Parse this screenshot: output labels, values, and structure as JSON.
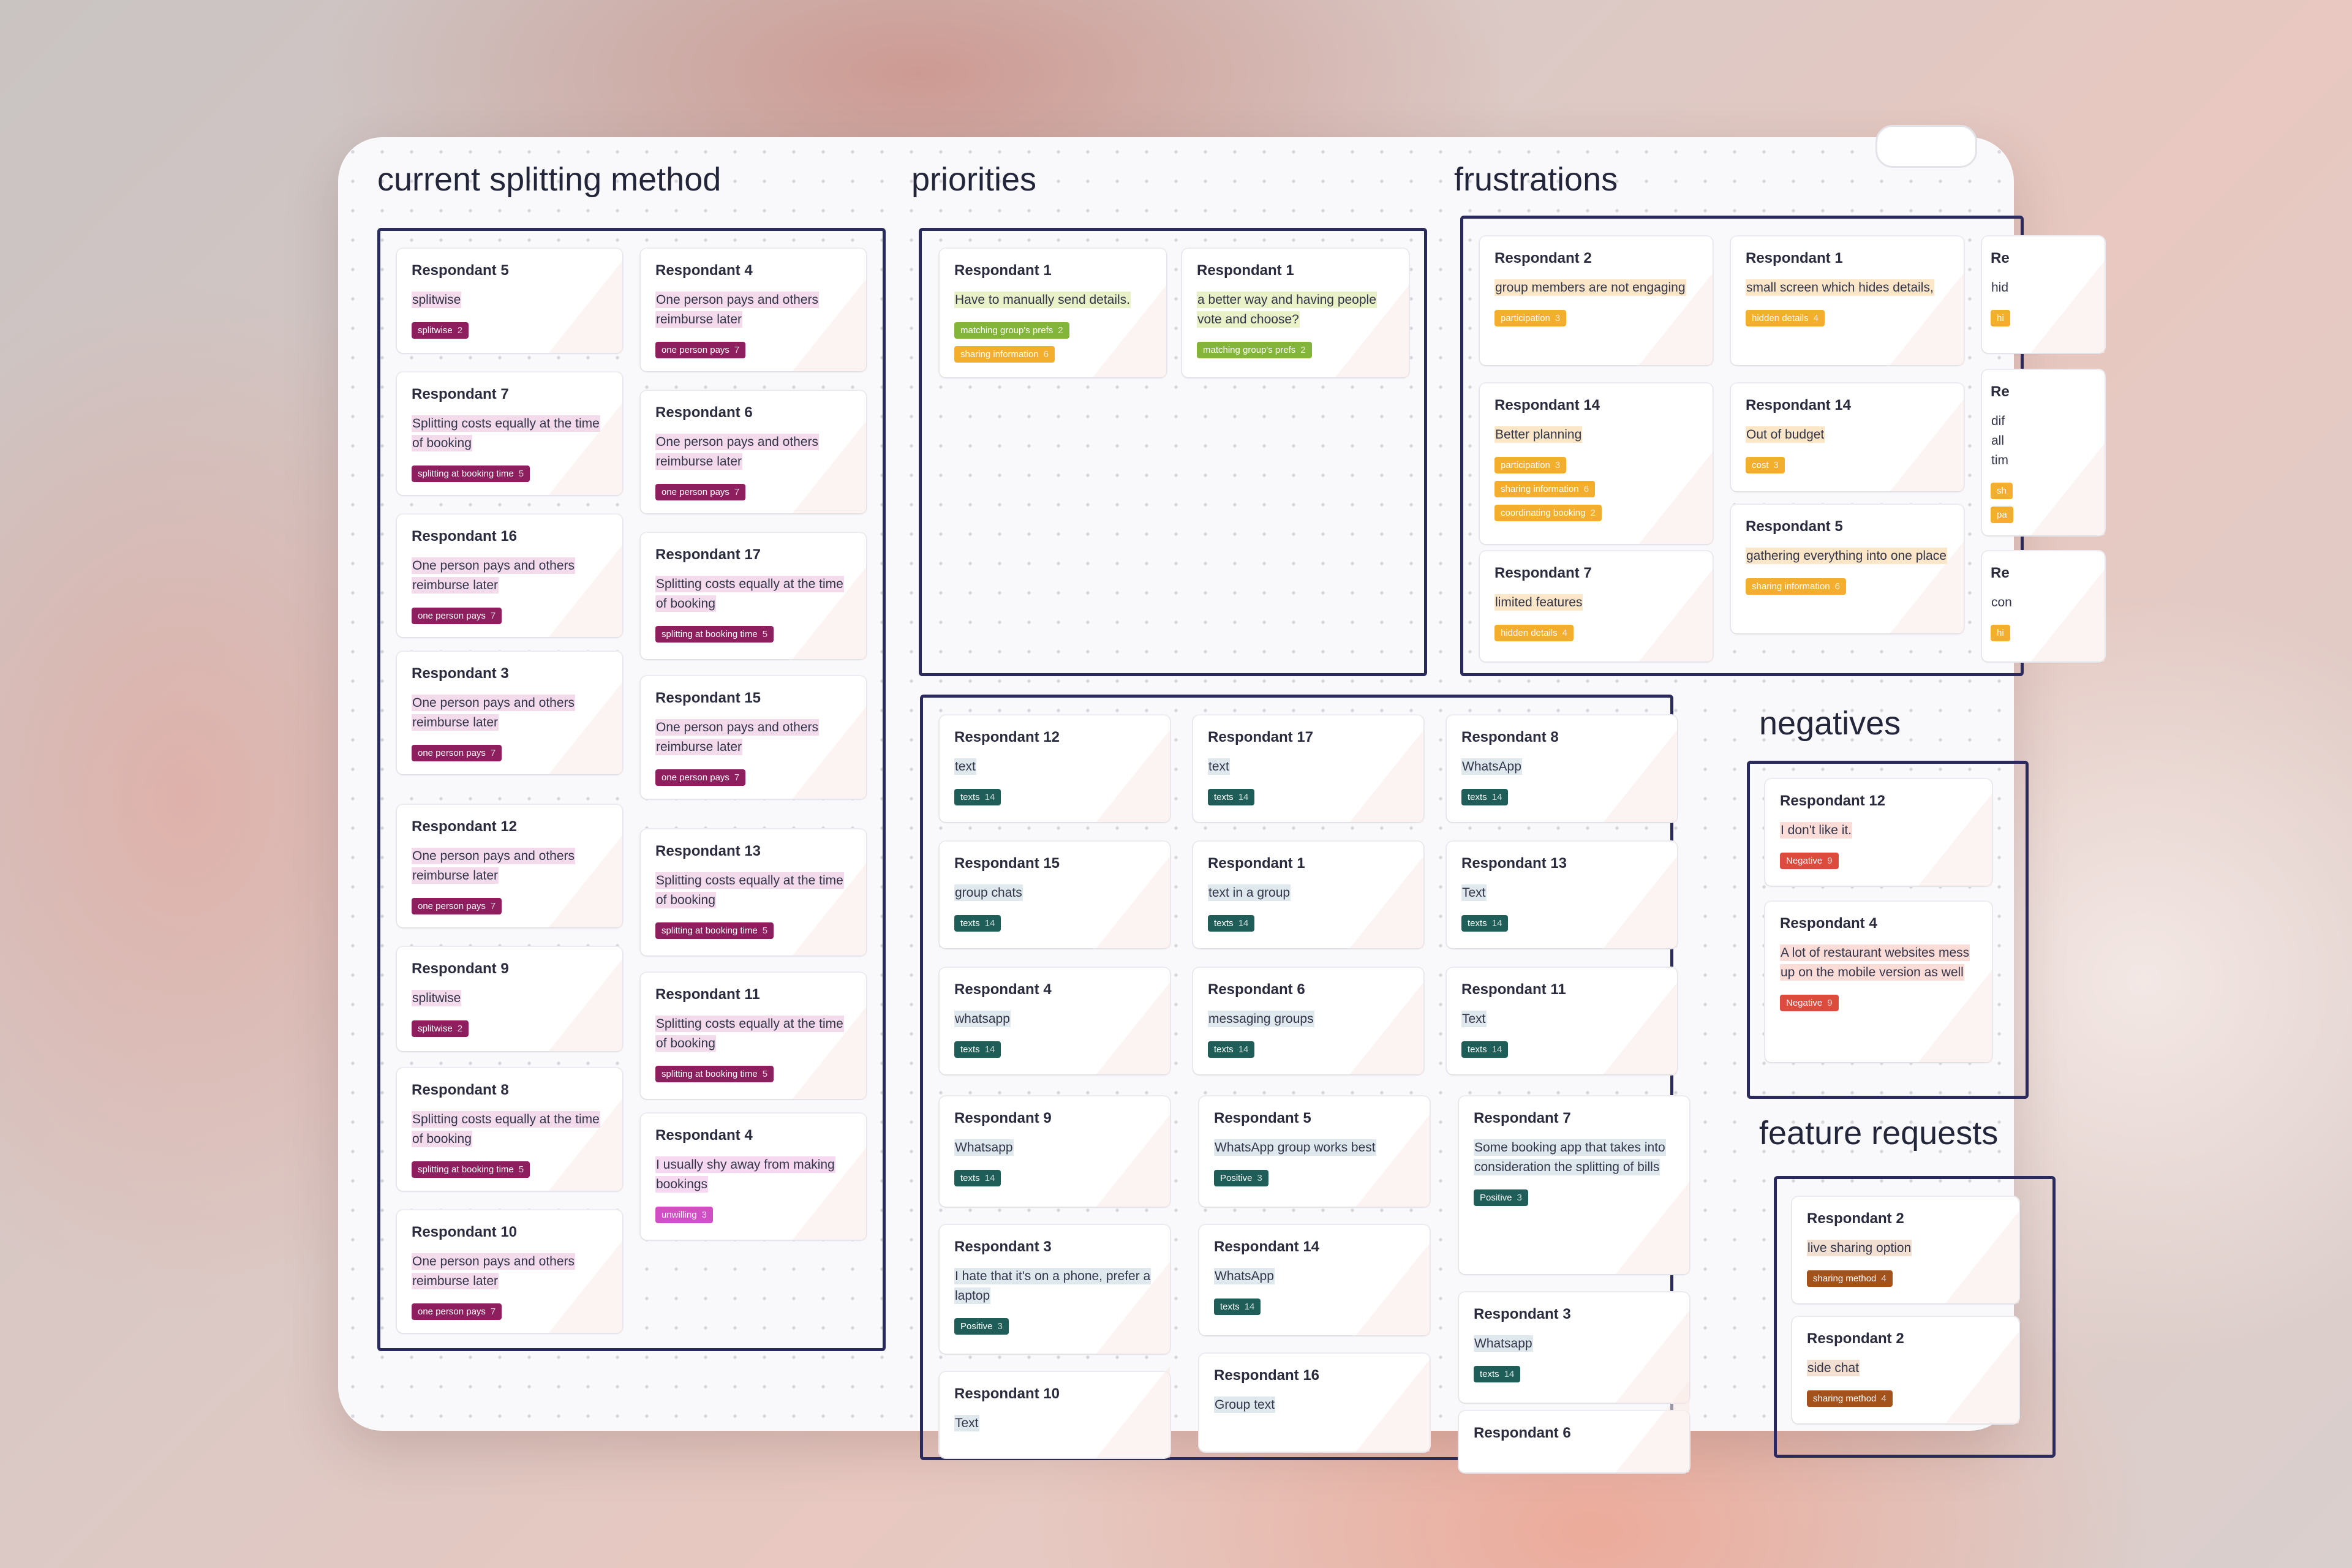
{
  "sections": {
    "current_splitting_method": "current splitting method",
    "priorities": "priorities",
    "frustrations": "frustrations",
    "negatives": "negatives",
    "feature_requests": "feature requests"
  },
  "colors": {
    "purple_tag": "#8e1f5f",
    "magenta_tag": "#d04fc5",
    "green_tag": "#83b53a",
    "orange_tag": "#f2ae2c",
    "teal_tag": "#1f5e58",
    "red_tag": "#dc4b3b",
    "brown_tag": "#a4521c",
    "group_border": "#2a2b5c"
  },
  "notes": {
    "csm": [
      {
        "resp": "Respondant 5",
        "text": "splitwise",
        "tag": "splitwise",
        "count": "2"
      },
      {
        "resp": "Respondant 7",
        "text": "Splitting costs equally at the time of booking",
        "tag": "splitting at booking time",
        "count": "5"
      },
      {
        "resp": "Respondant 16",
        "text": "One person pays and others reimburse later",
        "tag": "one person pays",
        "count": "7"
      },
      {
        "resp": "Respondant 3",
        "text": "One person pays and others reimburse later",
        "tag": "one person pays",
        "count": "7"
      },
      {
        "resp": "Respondant 12",
        "text": "One person pays and others reimburse later",
        "tag": "one person pays",
        "count": "7"
      },
      {
        "resp": "Respondant 9",
        "text": "splitwise",
        "tag": "splitwise",
        "count": "2"
      },
      {
        "resp": "Respondant 8",
        "text": "Splitting costs equally at the time of booking",
        "tag": "splitting at booking time",
        "count": "5"
      },
      {
        "resp": "Respondant 10",
        "text": "One person pays and others reimburse later",
        "tag": "one person pays",
        "count": "7"
      },
      {
        "resp": "Respondant 4",
        "text": "One person pays and others reimburse later",
        "tag": "one person pays",
        "count": "7"
      },
      {
        "resp": "Respondant 6",
        "text": "One person pays and others reimburse later",
        "tag": "one person pays",
        "count": "7"
      },
      {
        "resp": "Respondant 17",
        "text": "Splitting costs equally at the time of booking",
        "tag": "splitting at booking time",
        "count": "5"
      },
      {
        "resp": "Respondant 15",
        "text": "One person pays and others reimburse later",
        "tag": "one person pays",
        "count": "7"
      },
      {
        "resp": "Respondant 13",
        "text": "Splitting costs equally at the time of booking",
        "tag": "splitting at booking time",
        "count": "5"
      },
      {
        "resp": "Respondant 11",
        "text": "Splitting costs equally at the time of booking",
        "tag": "splitting at booking time",
        "count": "5"
      },
      {
        "resp": "Respondant 4",
        "text": "I usually shy away from making bookings",
        "tag": "unwilling",
        "count": "3"
      }
    ],
    "pri": [
      {
        "resp": "Respondant 1",
        "text": "Have to manually send details.",
        "tag": "matching group's prefs",
        "count": "2",
        "tag2": "sharing information",
        "count2": "6"
      },
      {
        "resp": "Respondant 1",
        "text": "a better way and having people vote and choose?",
        "tag": "matching group's prefs",
        "count": "2"
      }
    ],
    "fru": [
      {
        "resp": "Respondant 2",
        "text": "group members are not engaging",
        "tag": "participation",
        "count": "3"
      },
      {
        "resp": "Respondant 14",
        "text": "Better planning",
        "tag": "participation",
        "count": "3",
        "tag2": "sharing information",
        "count2": "6",
        "tag3": "coordinating booking",
        "count3": "2"
      },
      {
        "resp": "Respondant 7",
        "text": "limited features",
        "tag": "hidden details",
        "count": "4"
      },
      {
        "resp": "Respondant 1",
        "text": "small screen which hides details,",
        "tag": "hidden details",
        "count": "4"
      },
      {
        "resp": "Respondant 14",
        "text": "Out of budget",
        "tag": "cost",
        "count": "3"
      },
      {
        "resp": "Respondant 5",
        "text": "gathering everything into one place",
        "tag": "sharing information",
        "count": "6"
      },
      {
        "resp": "Re",
        "text": "hid",
        "tag": "hi",
        "count": ""
      },
      {
        "resp": "Re",
        "text": "dif all tim",
        "tag": "sh",
        "count": "",
        "tag2": "pa",
        "count2": ""
      },
      {
        "resp": "Re",
        "text": "con",
        "tag": "hi",
        "count": ""
      }
    ],
    "txt": [
      {
        "resp": "Respondant 12",
        "text": "text",
        "tag": "texts",
        "count": "14"
      },
      {
        "resp": "Respondant 17",
        "text": "text",
        "tag": "texts",
        "count": "14"
      },
      {
        "resp": "Respondant 8",
        "text": "WhatsApp",
        "tag": "texts",
        "count": "14"
      },
      {
        "resp": "Respondant 15",
        "text": "group chats",
        "tag": "texts",
        "count": "14"
      },
      {
        "resp": "Respondant 1",
        "text": "text in a group",
        "tag": "texts",
        "count": "14"
      },
      {
        "resp": "Respondant 13",
        "text": "Text",
        "tag": "texts",
        "count": "14"
      },
      {
        "resp": "Respondant 4",
        "text": "whatsapp",
        "tag": "texts",
        "count": "14"
      },
      {
        "resp": "Respondant 6",
        "text": "messaging groups",
        "tag": "texts",
        "count": "14"
      },
      {
        "resp": "Respondant 11",
        "text": "Text",
        "tag": "texts",
        "count": "14"
      },
      {
        "resp": "Respondant 9",
        "text": "Whatsapp",
        "tag": "texts",
        "count": "14"
      },
      {
        "resp": "Respondant 5",
        "text": "WhatsApp group works best",
        "tag": "Positive",
        "count": "3"
      },
      {
        "resp": "Respondant 7",
        "text": "Some booking app that takes into consideration the splitting of bills",
        "tag": "Positive",
        "count": "3"
      },
      {
        "resp": "Respondant 3",
        "text": "I hate that it's on a phone, prefer a laptop",
        "tag": "Positive",
        "count": "3"
      },
      {
        "resp": "Respondant 14",
        "text": "WhatsApp",
        "tag": "texts",
        "count": "14"
      },
      {
        "resp": "Respondant 3",
        "text": "Whatsapp",
        "tag": "texts",
        "count": "14"
      },
      {
        "resp": "Respondant 10",
        "text": "Text",
        "tag": "",
        "count": ""
      },
      {
        "resp": "Respondant 16",
        "text": "Group text",
        "tag": "",
        "count": ""
      },
      {
        "resp": "Respondant 6",
        "text": "",
        "tag": "",
        "count": ""
      }
    ],
    "neg": [
      {
        "resp": "Respondant 12",
        "text": "I don't like it.",
        "tag": "Negative",
        "count": "9"
      },
      {
        "resp": "Respondant 4",
        "text": "A lot of restaurant websites mess up on the mobile version as well",
        "tag": "Negative",
        "count": "9"
      }
    ],
    "feat": [
      {
        "resp": "Respondant 2",
        "text": "live sharing option",
        "tag": "sharing method",
        "count": "4"
      },
      {
        "resp": "Respondant 2",
        "text": "side chat",
        "tag": "sharing method",
        "count": "4"
      }
    ]
  }
}
